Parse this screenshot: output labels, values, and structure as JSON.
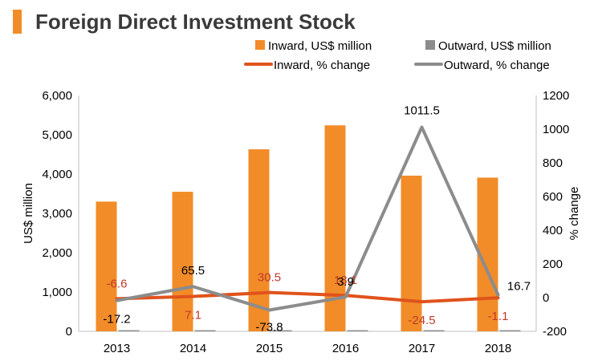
{
  "header": {
    "title": "Foreign Direct Investment Stock",
    "accent_color": "#F28C28"
  },
  "chart_data": {
    "type": "bar",
    "categories": [
      "2013",
      "2014",
      "2015",
      "2016",
      "2017",
      "2018"
    ],
    "bar_series": [
      {
        "name": "Inward, US$ million",
        "values": [
          3300,
          3550,
          4630,
          5240,
          3960,
          3910
        ],
        "color": "#F28C28"
      },
      {
        "name": "Outward, US$ million",
        "values": [
          8,
          8,
          8,
          8,
          8,
          8
        ],
        "color": "#8C8C8C"
      }
    ],
    "line_series": [
      {
        "name": "Inward, % change",
        "values": [
          -6.6,
          7.1,
          30.5,
          13.1,
          -24.5,
          -1.1
        ],
        "color": "#E0531C",
        "labels": [
          "-6.6",
          "7.1",
          "30.5",
          "13.1",
          "-24.5",
          "-1.1"
        ],
        "label_color": "#C0392B"
      },
      {
        "name": "Outward, % change",
        "values": [
          -17.2,
          65.5,
          -73.8,
          3.9,
          1011.5,
          16.7
        ],
        "color": "#8C8C8C",
        "labels": [
          "-17.2",
          "65.5",
          "-73.8",
          "3.9",
          "1011.5",
          "16.7"
        ],
        "label_color": "#000000"
      }
    ],
    "y_left": {
      "label": "US$ million",
      "ticks": [
        "0",
        "1,000",
        "2,000",
        "3,000",
        "4,000",
        "5,000",
        "6,000"
      ],
      "lim": [
        0,
        6000
      ]
    },
    "y_right": {
      "label": "% change",
      "ticks": [
        "-200",
        "0",
        "200",
        "400",
        "600",
        "800",
        "1000",
        "1200"
      ],
      "lim": [
        -200,
        1200
      ]
    },
    "legend_position": "top-right",
    "grid": false
  }
}
